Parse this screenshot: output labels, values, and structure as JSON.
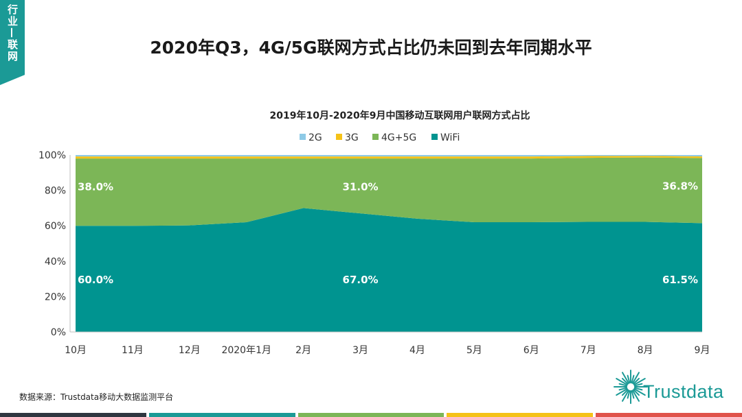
{
  "tag": "行业—联网",
  "main_title": "2020年Q3，4G/5G联网方式占比仍未回到去年同期水平",
  "source": "数据来源：Trustdata移动大数据监测平台",
  "logo_text": "Trustdata",
  "colors": {
    "2G": "#8ecae6",
    "3G": "#f5c218",
    "4G+5G": "#7cb657",
    "WiFi": "#009490",
    "brand": "#1b9a96",
    "footer": [
      "#2f3640",
      "#1b9a96",
      "#7cb657",
      "#f5c218",
      "#e0524a"
    ]
  },
  "chart_data": {
    "type": "area",
    "stacked": true,
    "title": "2019年10月-2020年9月中国移动互联网用户联网方式占比",
    "categories": [
      "10月",
      "11月",
      "12月",
      "2020年1月",
      "2月",
      "3月",
      "4月",
      "5月",
      "6月",
      "7月",
      "8月",
      "9月"
    ],
    "ylim": [
      0,
      100
    ],
    "y_ticks": [
      "0%",
      "20%",
      "40%",
      "60%",
      "80%",
      "100%"
    ],
    "legend_position": "top",
    "series": [
      {
        "name": "WiFi",
        "values": [
          60.0,
          60.0,
          60.2,
          62.0,
          70.0,
          67.0,
          64.0,
          62.0,
          62.0,
          62.2,
          62.2,
          61.5
        ]
      },
      {
        "name": "4G+5G",
        "values": [
          38.0,
          38.0,
          37.8,
          36.0,
          28.0,
          31.0,
          34.0,
          36.0,
          36.0,
          36.2,
          36.4,
          36.8
        ]
      },
      {
        "name": "3G",
        "values": [
          1.2,
          1.2,
          1.2,
          1.2,
          1.2,
          1.2,
          1.2,
          1.2,
          1.2,
          1.0,
          0.9,
          0.9
        ]
      },
      {
        "name": "2G",
        "values": [
          0.8,
          0.8,
          0.8,
          0.8,
          0.8,
          0.8,
          0.8,
          0.8,
          0.8,
          0.6,
          0.5,
          0.8
        ]
      }
    ],
    "data_labels": [
      {
        "series": "4G+5G",
        "index": 0,
        "text": "38.0%"
      },
      {
        "series": "4G+5G",
        "index": 5,
        "text": "31.0%"
      },
      {
        "series": "4G+5G",
        "index": 11,
        "text": "36.8%"
      },
      {
        "series": "WiFi",
        "index": 0,
        "text": "60.0%"
      },
      {
        "series": "WiFi",
        "index": 5,
        "text": "67.0%"
      },
      {
        "series": "WiFi",
        "index": 11,
        "text": "61.5%"
      }
    ]
  }
}
